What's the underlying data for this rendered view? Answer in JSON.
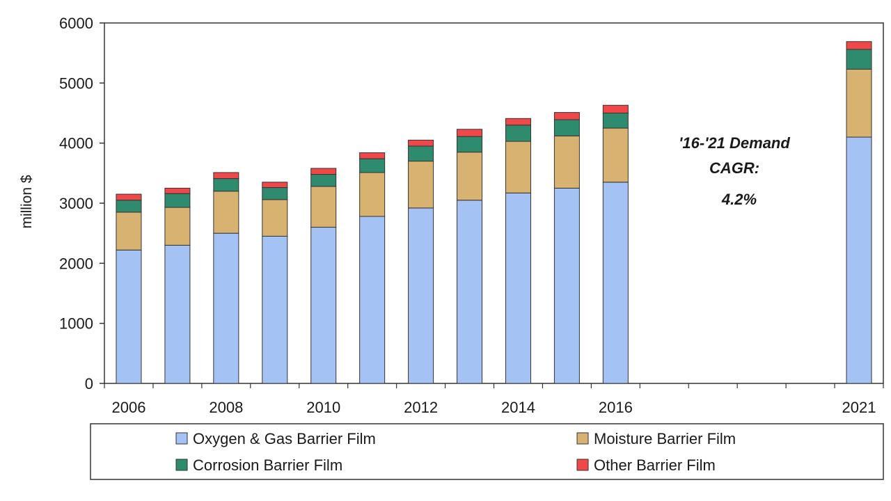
{
  "chart_data": {
    "type": "bar",
    "stacked": true,
    "categories": [
      "2006",
      "2007",
      "2008",
      "2009",
      "2010",
      "2011",
      "2012",
      "2013",
      "2014",
      "2015",
      "2016",
      "2021"
    ],
    "x_tick_labels": [
      "2006",
      "2008",
      "2010",
      "2012",
      "2014",
      "2016",
      "2021"
    ],
    "ylabel": "million $",
    "ylim": [
      0,
      6000
    ],
    "y_ticks": [
      0,
      1000,
      2000,
      3000,
      4000,
      5000,
      6000
    ],
    "grid": false,
    "legend_position": "bottom",
    "series": [
      {
        "name": "Oxygen & Gas Barrier Film",
        "color": "#a4c2f4",
        "values": [
          2220,
          2300,
          2500,
          2450,
          2600,
          2780,
          2920,
          3050,
          3170,
          3250,
          3350,
          4100
        ]
      },
      {
        "name": "Moisture Barrier Film",
        "color": "#d8b270",
        "values": [
          630,
          630,
          700,
          610,
          680,
          730,
          780,
          800,
          860,
          870,
          900,
          1130
        ]
      },
      {
        "name": "Corrosion Barrier Film",
        "color": "#2e8b6e",
        "values": [
          200,
          230,
          210,
          200,
          200,
          230,
          250,
          260,
          270,
          270,
          250,
          330
        ]
      },
      {
        "name": "Other Barrier Film",
        "color": "#f04848",
        "values": [
          100,
          90,
          100,
          90,
          100,
          100,
          100,
          120,
          110,
          120,
          130,
          130
        ]
      }
    ],
    "annotation": {
      "lines": [
        "'16-'21 Demand",
        "CAGR:",
        "4.2%"
      ]
    }
  }
}
